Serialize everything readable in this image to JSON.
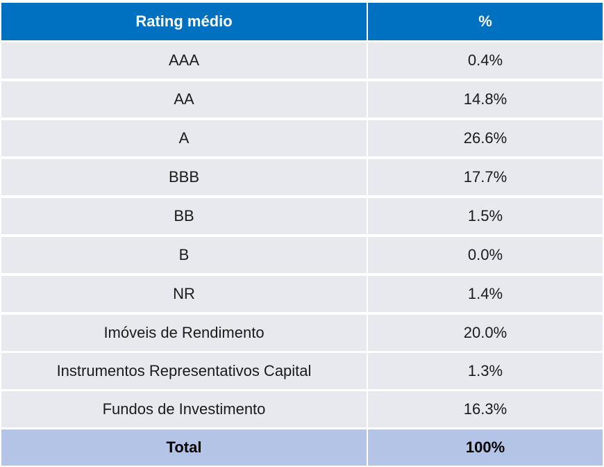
{
  "colors": {
    "header_bg": "#0070c0",
    "header_text": "#ffffff",
    "body_bg": "#e8e9ee",
    "total_bg": "#b3c4e6"
  },
  "table": {
    "headers": [
      "Rating médio",
      "%"
    ],
    "rows": [
      [
        "AAA",
        "0.4%"
      ],
      [
        "AA",
        "14.8%"
      ],
      [
        "A",
        "26.6%"
      ],
      [
        "BBB",
        "17.7%"
      ],
      [
        "BB",
        "1.5%"
      ],
      [
        "B",
        "0.0%"
      ],
      [
        "NR",
        "1.4%"
      ],
      [
        "Imóveis de Rendimento",
        "20.0%"
      ],
      [
        "Instrumentos Representativos Capital",
        "1.3%"
      ],
      [
        "Fundos de Investimento",
        "16.3%"
      ]
    ],
    "total": [
      "Total",
      "100%"
    ]
  },
  "chart_data": {
    "type": "table",
    "columns": [
      "Rating médio",
      "%"
    ],
    "categories": [
      "AAA",
      "AA",
      "A",
      "BBB",
      "BB",
      "B",
      "NR",
      "Imóveis de Rendimento",
      "Instrumentos Representativos Capital",
      "Fundos de Investimento"
    ],
    "values": [
      0.4,
      14.8,
      26.6,
      17.7,
      1.5,
      0.0,
      1.4,
      20.0,
      1.3,
      16.3
    ],
    "total": 100
  }
}
